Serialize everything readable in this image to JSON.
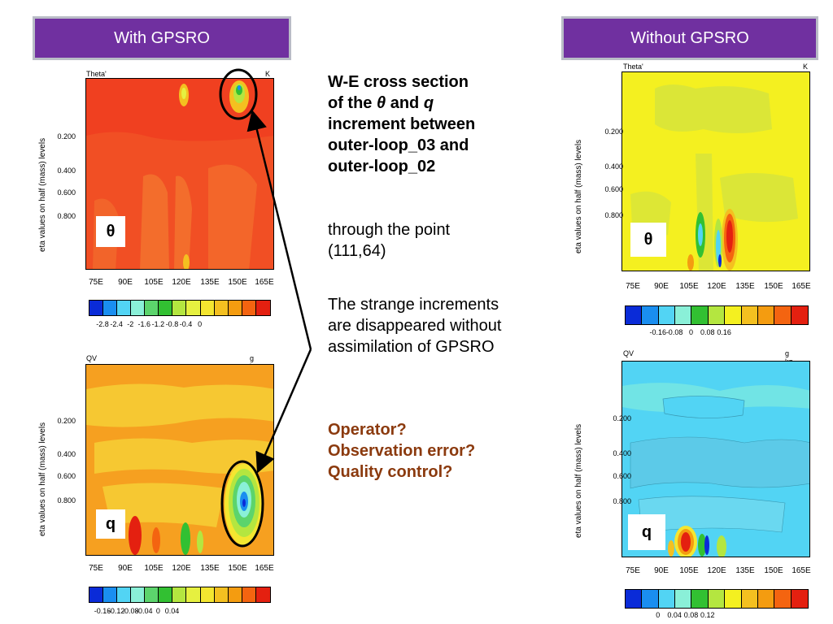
{
  "headers": {
    "left": "With GPSRO",
    "right": "Without GPSRO"
  },
  "panels": {
    "tl": {
      "title": "Theta'",
      "unit": "K",
      "symbol": "θ"
    },
    "bl": {
      "title": "QV",
      "unit": "g kg-1",
      "symbol": "q"
    },
    "tr": {
      "title": "Theta'",
      "unit": "K",
      "symbol": "θ"
    },
    "br": {
      "title": "QV",
      "unit": "g kg-1",
      "symbol": "q"
    }
  },
  "axes": {
    "ylabel": "eta values on half (mass) levels",
    "yticks": [
      "0.200",
      "0.400",
      "0.600",
      "0.800"
    ],
    "xticks": [
      "75E",
      "90E",
      "105E",
      "120E",
      "135E",
      "150E",
      "165E"
    ]
  },
  "colorbars": {
    "tl": {
      "colors": [
        "#0a2bd8",
        "#1a8ef0",
        "#52d4f4",
        "#8af0d8",
        "#5cd46c",
        "#32c032",
        "#b4e640",
        "#e6f040",
        "#f4e630",
        "#f4c020",
        "#f49c10",
        "#f46410",
        "#e42010"
      ],
      "labels": [
        "-2.8",
        "-2.4",
        "-2",
        "-1.6",
        "-1.2",
        "-0.8",
        "-0.4",
        "0"
      ]
    },
    "bl": {
      "colors": [
        "#0a2bd8",
        "#1a8ef0",
        "#52d4f4",
        "#8af0d8",
        "#5cd46c",
        "#32c032",
        "#b4e640",
        "#e6f040",
        "#f4e630",
        "#f4c020",
        "#f49c10",
        "#f46410",
        "#e42010"
      ],
      "labels": [
        "-0.16",
        "-0.12",
        "-0.08",
        "-0.04",
        "0",
        "0.04"
      ]
    },
    "tr": {
      "colors": [
        "#0a2bd8",
        "#1a8ef0",
        "#52d4f4",
        "#8af0d8",
        "#32c032",
        "#b4e640",
        "#f4f020",
        "#f4c020",
        "#f49c10",
        "#f46410",
        "#e42010"
      ],
      "labels": [
        "-0.16",
        "-0.08",
        "0",
        "0.08",
        "0.16"
      ]
    },
    "br": {
      "colors": [
        "#0a2bd8",
        "#1a8ef0",
        "#52d4f4",
        "#8af0d8",
        "#32c032",
        "#b4e640",
        "#f4f020",
        "#f4c020",
        "#f49c10",
        "#f46410",
        "#e42010"
      ],
      "labels": [
        "0",
        "0.04",
        "0.08",
        "0.12"
      ]
    }
  },
  "text": {
    "heading_line1": "W-E cross section",
    "heading_of": "of the",
    "heading_theta": "θ",
    "heading_and": "and",
    "heading_q": "q",
    "heading_line3": "increment between",
    "heading_line4": "outer-loop_03 and",
    "heading_line5": "outer-loop_02",
    "point_line1": "through the point",
    "point_line2": "(111,64)",
    "strange_line1": "The strange increments",
    "strange_line2": "are disappeared without",
    "strange_line3": "assimilation of GPSRO",
    "question1": "Operator?",
    "question2": "Observation error?",
    "question3": "Quality control?"
  },
  "chart_data": [
    {
      "type": "heatmap",
      "title": "Theta'",
      "units": "K",
      "ylabel": "eta values on half (mass) levels",
      "xticks": [
        "75E",
        "90E",
        "105E",
        "120E",
        "135E",
        "150E",
        "165E"
      ],
      "yticks": [
        "0.200",
        "0.400",
        "0.600",
        "0.800"
      ],
      "colorbar_labels": [
        -2.8,
        -2.4,
        -2,
        -1.6,
        -1.2,
        -0.8,
        -0.4,
        0
      ]
    },
    {
      "type": "heatmap",
      "title": "QV",
      "units": "g kg-1",
      "ylabel": "eta values on half (mass) levels",
      "xticks": [
        "75E",
        "90E",
        "105E",
        "120E",
        "135E",
        "150E",
        "165E"
      ],
      "yticks": [
        "0.200",
        "0.400",
        "0.600",
        "0.800"
      ],
      "colorbar_labels": [
        -0.16,
        -0.12,
        -0.08,
        -0.04,
        0,
        0.04
      ]
    },
    {
      "type": "heatmap",
      "title": "Theta'",
      "units": "K",
      "ylabel": "eta values on half (mass) levels",
      "xticks": [
        "75E",
        "90E",
        "105E",
        "120E",
        "135E",
        "150E",
        "165E"
      ],
      "yticks": [
        "0.200",
        "0.400",
        "0.600",
        "0.800"
      ],
      "colorbar_labels": [
        -0.16,
        -0.08,
        0,
        0.08,
        0.16
      ]
    },
    {
      "type": "heatmap",
      "title": "QV",
      "units": "g kg-1",
      "ylabel": "eta values on half (mass) levels",
      "xticks": [
        "75E",
        "90E",
        "105E",
        "120E",
        "135E",
        "150E",
        "165E"
      ],
      "yticks": [
        "0.200",
        "0.400",
        "0.600",
        "0.800"
      ],
      "colorbar_labels": [
        0,
        0.04,
        0.08,
        0.12
      ]
    }
  ]
}
